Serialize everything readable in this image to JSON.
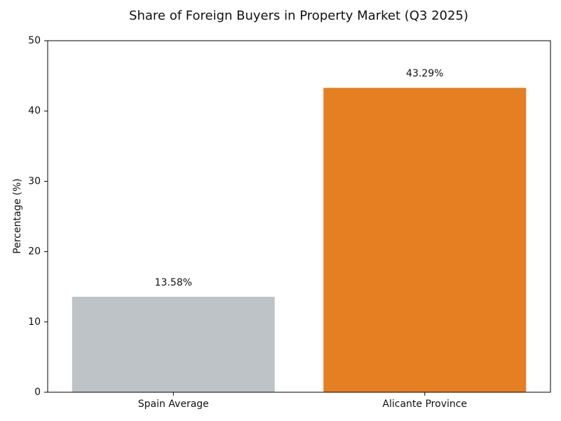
{
  "chart_data": {
    "type": "bar",
    "title": "Share of Foreign Buyers in Property Market (Q3 2025)",
    "y_label": "Percentage (%)",
    "categories": [
      "Spain Average",
      "Alicante Province"
    ],
    "values": [
      13.58,
      43.29
    ],
    "value_labels": [
      "13.58%",
      "43.29%"
    ],
    "colors": [
      "#bdc3c7",
      "#e67e22"
    ],
    "ylim": [
      0,
      50
    ],
    "yticks": [
      0,
      10,
      20,
      30,
      40,
      50
    ],
    "grid": false
  }
}
